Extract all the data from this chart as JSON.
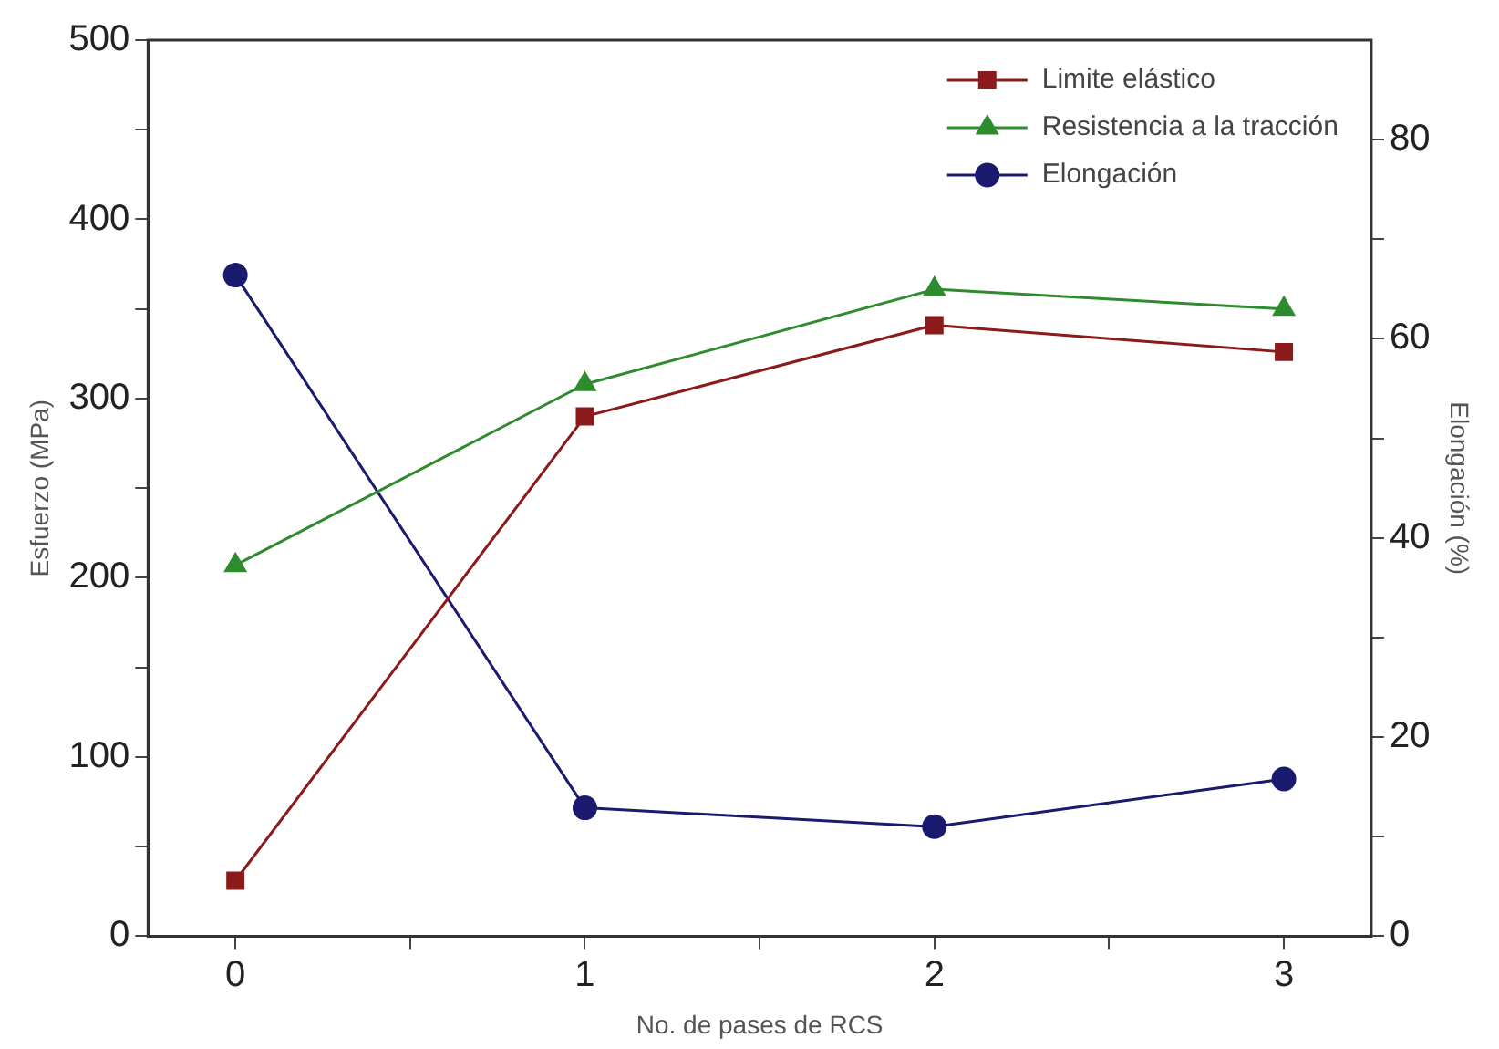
{
  "chart_data": {
    "type": "line",
    "xlabel": "No. de pases de RCS",
    "ylabel": "Esfuerzo (MPa)",
    "y2label": "Elongación (%)",
    "x": [
      0,
      1,
      2,
      3
    ],
    "xlim": [
      -0.25,
      3.25
    ],
    "xticks": [
      0,
      {
        "value": 0.5,
        "label": null
      },
      1,
      {
        "value": 1.5,
        "label": null
      },
      2,
      {
        "value": 2.5,
        "label": null
      },
      3
    ],
    "ylim": [
      0,
      500
    ],
    "yticks": [
      0,
      {
        "value": 50,
        "label": null
      },
      100,
      {
        "value": 150,
        "label": null
      },
      200,
      {
        "value": 250,
        "label": null
      },
      300,
      {
        "value": 350,
        "label": null
      },
      400,
      {
        "value": 450,
        "label": null
      },
      500
    ],
    "y2lim": [
      0,
      90
    ],
    "y2ticks": [
      0,
      {
        "value": 10,
        "label": null
      },
      20,
      {
        "value": 30,
        "label": null
      },
      40,
      {
        "value": 50,
        "label": null
      },
      60,
      {
        "value": 70,
        "label": null
      },
      80
    ],
    "grid": false,
    "legend": "top right",
    "line_style": "solid",
    "series": [
      {
        "name": "Limite elástico",
        "color": "#8b1a1a",
        "marker": "square",
        "values": [
          31,
          290,
          341,
          326
        ]
      },
      {
        "name": "Resistencia a la tracción",
        "color": "#2e8b2e",
        "marker": "triangle",
        "values": [
          207,
          308,
          361,
          350
        ]
      },
      {
        "name": "Elongación",
        "color": "#1a1a6e",
        "marker": "circle",
        "axis": "y2",
        "values": [
          66.4,
          12.9,
          11.0,
          15.8
        ]
      }
    ]
  }
}
